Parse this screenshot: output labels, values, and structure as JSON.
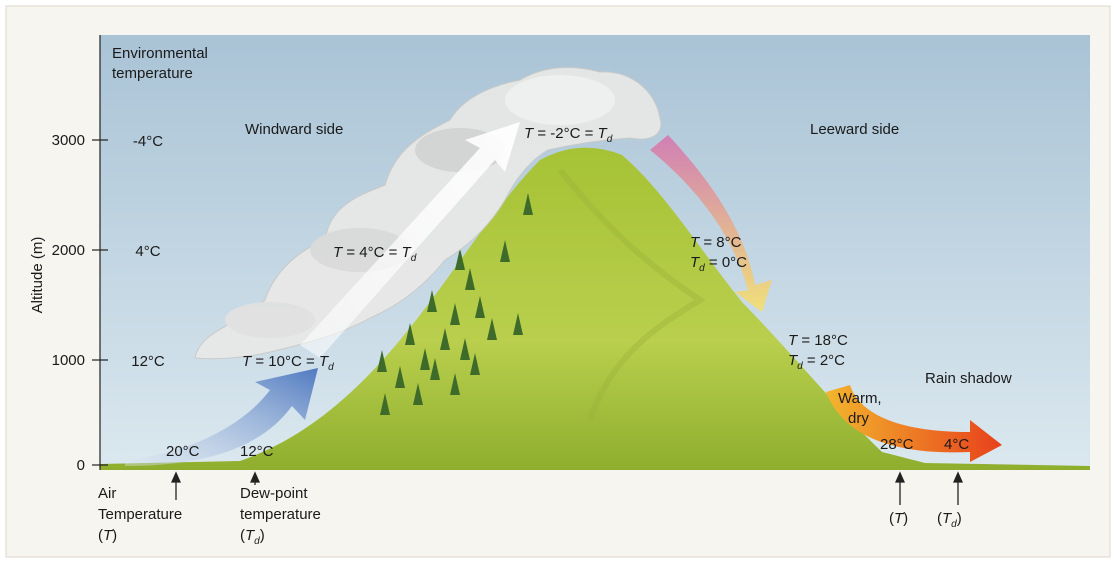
{
  "axis": {
    "title": "Altitude (m)",
    "ticks": [
      "3000",
      "2000",
      "1000",
      "0"
    ]
  },
  "environmental": {
    "title_lines": [
      "Environmental",
      "temperature"
    ],
    "values": [
      "-4°C",
      "4°C",
      "12°C"
    ]
  },
  "regions": {
    "windward": "Windward side",
    "leeward": "Leeward side",
    "rain_shadow": "Rain shadow"
  },
  "annotations": {
    "summit": [
      "T",
      " = -2°C = ",
      "T",
      "d"
    ],
    "rising_2000": [
      "T",
      " = 4°C = ",
      "T",
      "d"
    ],
    "rising_1000": [
      "T",
      " = 10°C = ",
      "T",
      "d"
    ],
    "descending_2000": {
      "t": [
        "T",
        " = 8°C"
      ],
      "td": [
        "T",
        "d",
        " = 0°C"
      ]
    },
    "descending_1000": {
      "t": [
        "T",
        " = 18°C"
      ],
      "td": [
        "T",
        "d",
        " = 2°C"
      ]
    },
    "warm_dry": [
      "Warm,",
      "dry"
    ],
    "base_windward": {
      "air": "20°C",
      "dew_point": "12°C"
    },
    "base_leeward": {
      "air": "28°C",
      "dew_point": "4°C"
    }
  },
  "legend": {
    "air": [
      "Air",
      "Temperature",
      "(",
      "T",
      ")"
    ],
    "dew_point": [
      "Dew-point",
      "temperature",
      "(",
      "T",
      "d",
      ")"
    ],
    "leeward_air": [
      "(",
      "T",
      ")"
    ],
    "leeward_dew_point": [
      "(",
      "T",
      "d",
      ")"
    ]
  }
}
